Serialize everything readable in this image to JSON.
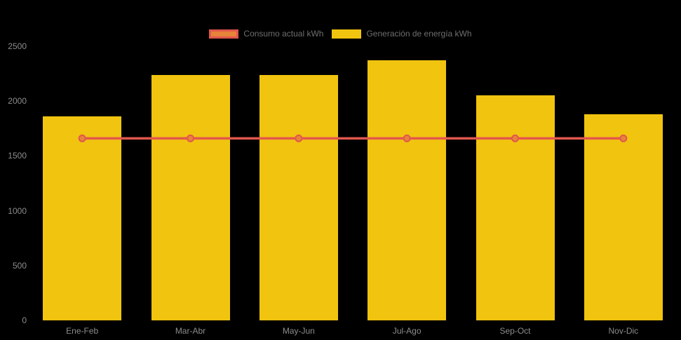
{
  "chart_data": {
    "type": "bar",
    "title": "",
    "categories": [
      "Ene-Feb",
      "Mar-Abr",
      "May-Jun",
      "Jul-Ago",
      "Sep-Oct",
      "Nov-Dic"
    ],
    "series": [
      {
        "name": "Consumo actual kWh",
        "type": "line",
        "values": [
          1660,
          1660,
          1660,
          1660,
          1660,
          1660
        ],
        "line_color": "#e2574c",
        "point_fill": "#e8833a",
        "legend_fill": "#e8833a",
        "legend_border": "#e2574c"
      },
      {
        "name": "Generación de energía kWh",
        "type": "bar",
        "values": [
          1860,
          2240,
          2240,
          2370,
          2050,
          1880
        ],
        "bar_color": "#f1c40f",
        "legend_fill": "#f1c40f",
        "legend_border": "#f1c40f"
      }
    ],
    "xlabel": "",
    "ylabel": "",
    "ylim": [
      0,
      2500
    ],
    "yticks": [
      0,
      500,
      1000,
      1500,
      2000,
      2500
    ],
    "grid": false,
    "legend_position": "top",
    "background_color": "#000000",
    "axis_text_color": "#8c8c8c",
    "legend_text_color": "#6e6e6e"
  }
}
